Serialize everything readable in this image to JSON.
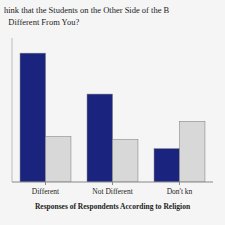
{
  "chart_data": {
    "type": "bar",
    "title": "hink that the Students on the Other Side of the B",
    "subtitle": "  Different From You?",
    "x_label": "Responses of Respondents According to Religion",
    "categories": [
      "Different",
      "Not Different",
      "Don't kn"
    ],
    "series": [
      {
        "color": "#1a237e",
        "values": [
          85,
          58,
          22
        ]
      },
      {
        "color": "#d8d8d8",
        "values": [
          30,
          28,
          40
        ]
      }
    ],
    "ylim": [
      0,
      95
    ],
    "grid": false,
    "tick_labels": "x"
  }
}
